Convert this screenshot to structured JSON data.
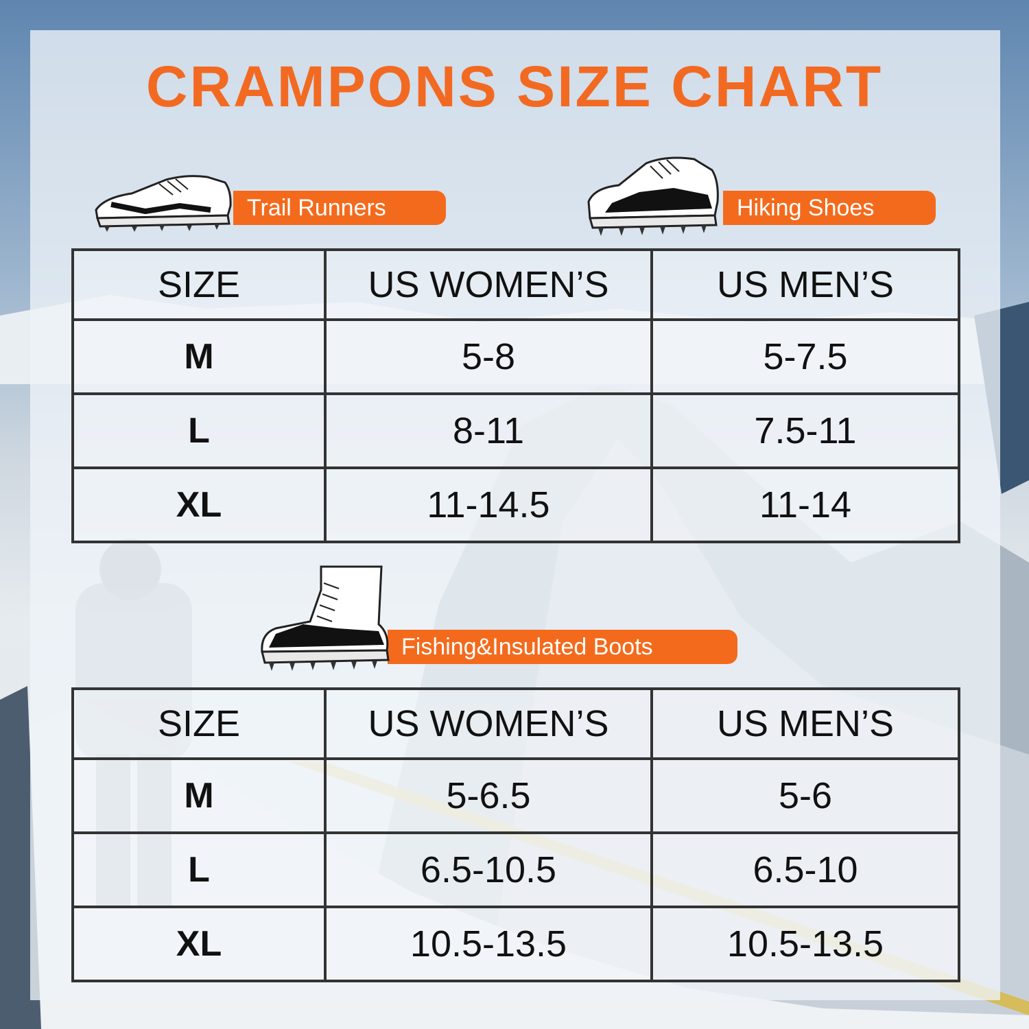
{
  "title": "CRAMPONS SIZE CHART",
  "colors": {
    "accent": "#f46a1c",
    "title": "#f26a22",
    "grid": "#333333"
  },
  "sections": [
    {
      "label": "Trail Runners",
      "icon": "trail-runner-shoe-icon",
      "headers": [
        "SIZE",
        "US WOMEN’S",
        "US MEN’S"
      ],
      "rows": [
        {
          "size": "M",
          "women": "5-8",
          "men": "5-7.5"
        },
        {
          "size": "L",
          "women": "8-11",
          "men": "7.5-11"
        },
        {
          "size": "XL",
          "women": "11-14.5",
          "men": "11-14"
        }
      ]
    },
    {
      "label": "Hiking Shoes",
      "icon": "hiking-shoe-icon"
    },
    {
      "label": "Fishing&Insulated Boots",
      "icon": "insulated-boot-icon",
      "headers": [
        "SIZE",
        "US WOMEN’S",
        "US MEN’S"
      ],
      "rows": [
        {
          "size": "M",
          "women": "5-6.5",
          "men": "5-6"
        },
        {
          "size": "L",
          "women": "6.5-10.5",
          "men": "6.5-10"
        },
        {
          "size": "XL",
          "women": "10.5-13.5",
          "men": "10.5-13.5"
        }
      ]
    }
  ]
}
